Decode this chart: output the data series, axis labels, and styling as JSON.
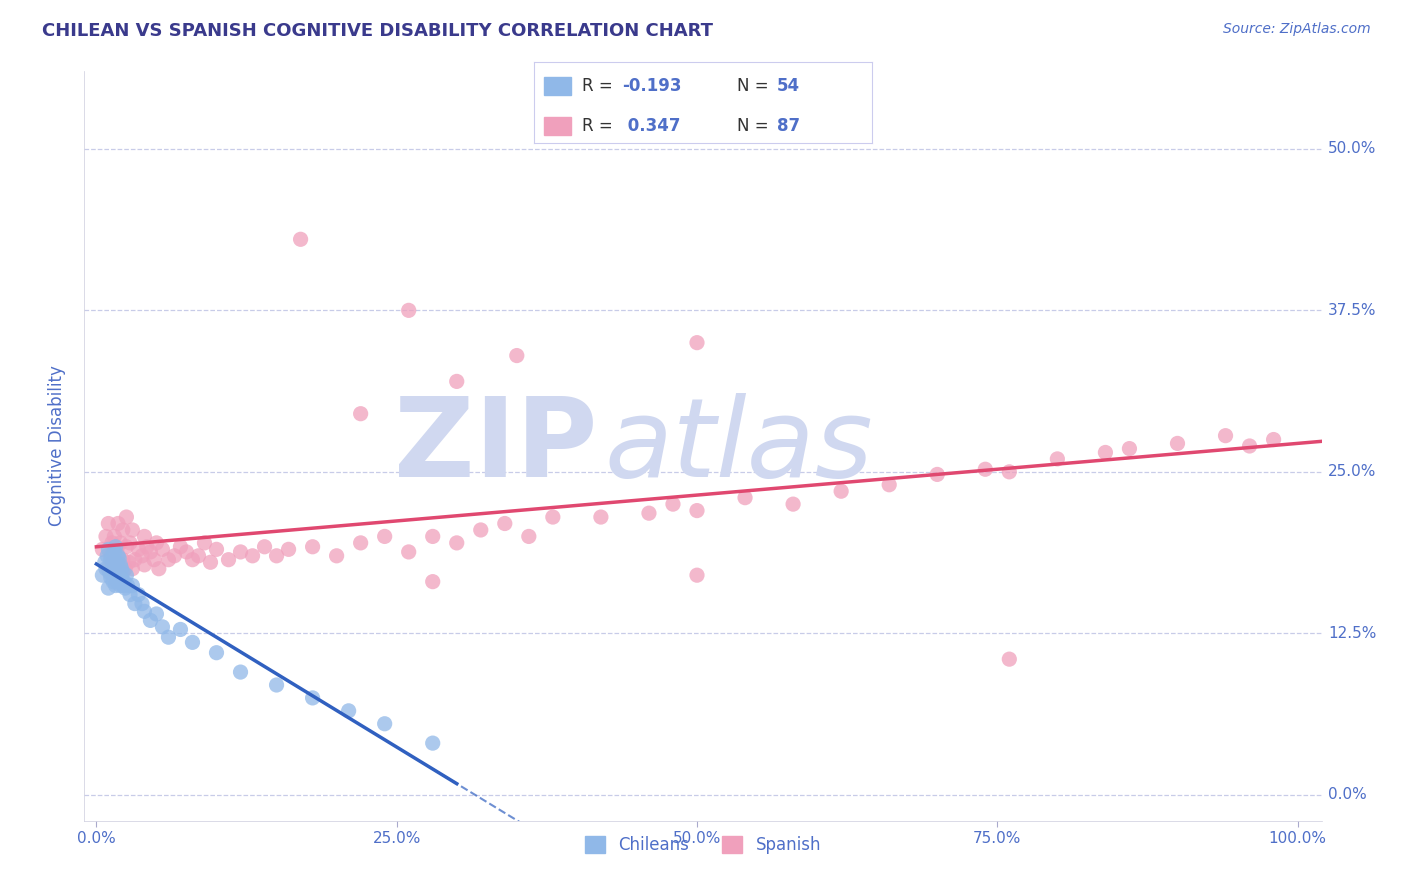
{
  "title": "CHILEAN VS SPANISH COGNITIVE DISABILITY CORRELATION CHART",
  "source_text": "Source: ZipAtlas.com",
  "ylabel": "Cognitive Disability",
  "xlim": [
    -0.01,
    1.02
  ],
  "ylim": [
    -0.02,
    0.56
  ],
  "yticks": [
    0.0,
    0.125,
    0.25,
    0.375,
    0.5
  ],
  "ytick_labels": [
    "0.0%",
    "12.5%",
    "25.0%",
    "37.5%",
    "50.0%"
  ],
  "xticks": [
    0.0,
    0.25,
    0.5,
    0.75,
    1.0
  ],
  "xtick_labels": [
    "0.0%",
    "25.0%",
    "50.0%",
    "75.0%",
    "100.0%"
  ],
  "title_color": "#3a3a8c",
  "axis_color": "#4f6fc8",
  "grid_color": "#c8cce8",
  "watermark_zip": "ZIP",
  "watermark_atlas": "atlas",
  "watermark_color": "#d0d8f0",
  "legend_R1": "-0.193",
  "legend_N1": "54",
  "legend_R2": "0.347",
  "legend_N2": "87",
  "chilean_color": "#90b8e8",
  "spanish_color": "#f0a0bc",
  "chilean_line_color": "#3060c0",
  "spanish_line_color": "#e04870",
  "background_color": "#ffffff",
  "chilean_scatter_x": [
    0.005,
    0.007,
    0.008,
    0.009,
    0.01,
    0.01,
    0.011,
    0.012,
    0.012,
    0.013,
    0.013,
    0.014,
    0.014,
    0.015,
    0.015,
    0.016,
    0.016,
    0.016,
    0.017,
    0.017,
    0.018,
    0.018,
    0.018,
    0.019,
    0.019,
    0.02,
    0.02,
    0.021,
    0.021,
    0.022,
    0.022,
    0.023,
    0.024,
    0.025,
    0.026,
    0.028,
    0.03,
    0.032,
    0.035,
    0.038,
    0.04,
    0.045,
    0.05,
    0.055,
    0.06,
    0.07,
    0.08,
    0.1,
    0.12,
    0.15,
    0.18,
    0.21,
    0.24,
    0.28
  ],
  "chilean_scatter_y": [
    0.17,
    0.18,
    0.175,
    0.185,
    0.16,
    0.19,
    0.172,
    0.168,
    0.182,
    0.175,
    0.185,
    0.165,
    0.178,
    0.17,
    0.188,
    0.162,
    0.175,
    0.192,
    0.168,
    0.18,
    0.165,
    0.177,
    0.185,
    0.17,
    0.183,
    0.162,
    0.178,
    0.168,
    0.175,
    0.162,
    0.172,
    0.165,
    0.16,
    0.17,
    0.162,
    0.155,
    0.162,
    0.148,
    0.155,
    0.148,
    0.142,
    0.135,
    0.14,
    0.13,
    0.122,
    0.128,
    0.118,
    0.11,
    0.095,
    0.085,
    0.075,
    0.065,
    0.055,
    0.04
  ],
  "spanish_scatter_x": [
    0.005,
    0.008,
    0.01,
    0.01,
    0.012,
    0.013,
    0.014,
    0.015,
    0.016,
    0.017,
    0.018,
    0.018,
    0.02,
    0.02,
    0.022,
    0.022,
    0.024,
    0.025,
    0.025,
    0.027,
    0.028,
    0.03,
    0.03,
    0.032,
    0.035,
    0.038,
    0.04,
    0.04,
    0.042,
    0.045,
    0.048,
    0.05,
    0.052,
    0.055,
    0.06,
    0.065,
    0.07,
    0.075,
    0.08,
    0.085,
    0.09,
    0.095,
    0.1,
    0.11,
    0.12,
    0.13,
    0.14,
    0.15,
    0.16,
    0.18,
    0.2,
    0.22,
    0.24,
    0.26,
    0.28,
    0.3,
    0.32,
    0.34,
    0.36,
    0.38,
    0.42,
    0.46,
    0.48,
    0.5,
    0.54,
    0.58,
    0.62,
    0.66,
    0.7,
    0.74,
    0.76,
    0.8,
    0.84,
    0.86,
    0.9,
    0.94,
    0.96,
    0.98,
    0.3,
    0.35,
    0.26,
    0.5,
    0.17,
    0.22,
    0.5,
    0.76,
    0.28
  ],
  "spanish_scatter_y": [
    0.19,
    0.2,
    0.175,
    0.21,
    0.185,
    0.195,
    0.18,
    0.2,
    0.175,
    0.19,
    0.185,
    0.21,
    0.178,
    0.195,
    0.182,
    0.205,
    0.175,
    0.192,
    0.215,
    0.18,
    0.195,
    0.175,
    0.205,
    0.182,
    0.19,
    0.185,
    0.178,
    0.2,
    0.192,
    0.188,
    0.182,
    0.195,
    0.175,
    0.19,
    0.182,
    0.185,
    0.192,
    0.188,
    0.182,
    0.185,
    0.195,
    0.18,
    0.19,
    0.182,
    0.188,
    0.185,
    0.192,
    0.185,
    0.19,
    0.192,
    0.185,
    0.195,
    0.2,
    0.188,
    0.2,
    0.195,
    0.205,
    0.21,
    0.2,
    0.215,
    0.215,
    0.218,
    0.225,
    0.22,
    0.23,
    0.225,
    0.235,
    0.24,
    0.248,
    0.252,
    0.25,
    0.26,
    0.265,
    0.268,
    0.272,
    0.278,
    0.27,
    0.275,
    0.32,
    0.34,
    0.375,
    0.35,
    0.43,
    0.295,
    0.17,
    0.105,
    0.165
  ]
}
